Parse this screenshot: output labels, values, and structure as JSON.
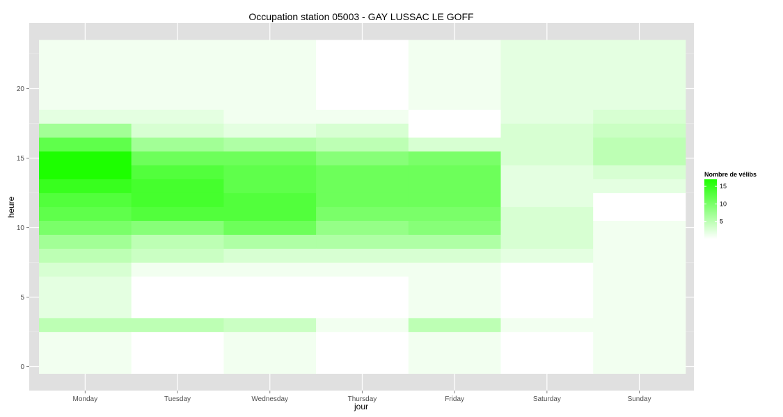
{
  "chart_data": {
    "type": "heatmap",
    "title": "Occupation station 05003 - GAY LUSSAC LE GOFF",
    "xlabel": "jour",
    "ylabel": "heure",
    "x_categories": [
      "Monday",
      "Tuesday",
      "Wednesday",
      "Thursday",
      "Friday",
      "Saturday",
      "Sunday"
    ],
    "y_range": [
      0,
      23
    ],
    "y_ticks": [
      0,
      5,
      10,
      15,
      20
    ],
    "grid": true,
    "legend": {
      "title": "Nombre de vélibs",
      "placement": "right",
      "ticks": [
        5,
        10,
        15
      ],
      "low_color": "#ffffff",
      "high_color": "#1dff00",
      "min": 0,
      "max": 17
    },
    "background_color": "#e0e0e0",
    "values": {
      "Monday": [
        1,
        1,
        1,
        5,
        2,
        2,
        2,
        3,
        5,
        7,
        10,
        12,
        13,
        15,
        17,
        17,
        12,
        7,
        2,
        1,
        1,
        1,
        1,
        1
      ],
      "Tuesday": [
        0,
        0,
        0,
        5,
        0,
        0,
        0,
        1,
        4,
        5,
        9,
        13,
        14,
        14,
        13,
        11,
        7,
        3,
        2,
        1,
        1,
        1,
        1,
        1
      ],
      "Wednesday": [
        1,
        1,
        1,
        4,
        0,
        0,
        0,
        1,
        3,
        6,
        11,
        13,
        13,
        12,
        12,
        11,
        6,
        2,
        1,
        1,
        1,
        1,
        1,
        1
      ],
      "Thursday": [
        0,
        0,
        0,
        1,
        0,
        0,
        0,
        1,
        3,
        6,
        8,
        10,
        11,
        11,
        11,
        9,
        5,
        3,
        1,
        0,
        0,
        0,
        0,
        0
      ],
      "Friday": [
        1,
        1,
        1,
        5,
        1,
        1,
        1,
        1,
        3,
        6,
        9,
        10,
        11,
        11,
        11,
        10,
        3,
        0,
        0,
        1,
        1,
        1,
        1,
        1
      ],
      "Saturday": [
        0,
        0,
        0,
        1,
        0,
        0,
        0,
        0,
        2,
        3,
        3,
        3,
        2,
        2,
        2,
        3,
        3,
        3,
        2,
        2,
        2,
        2,
        2,
        2
      ],
      "Sunday": [
        1,
        1,
        1,
        1,
        1,
        1,
        1,
        1,
        1,
        1,
        1,
        0,
        0,
        2,
        3,
        5,
        5,
        4,
        3,
        2,
        2,
        2,
        2,
        2
      ]
    }
  }
}
